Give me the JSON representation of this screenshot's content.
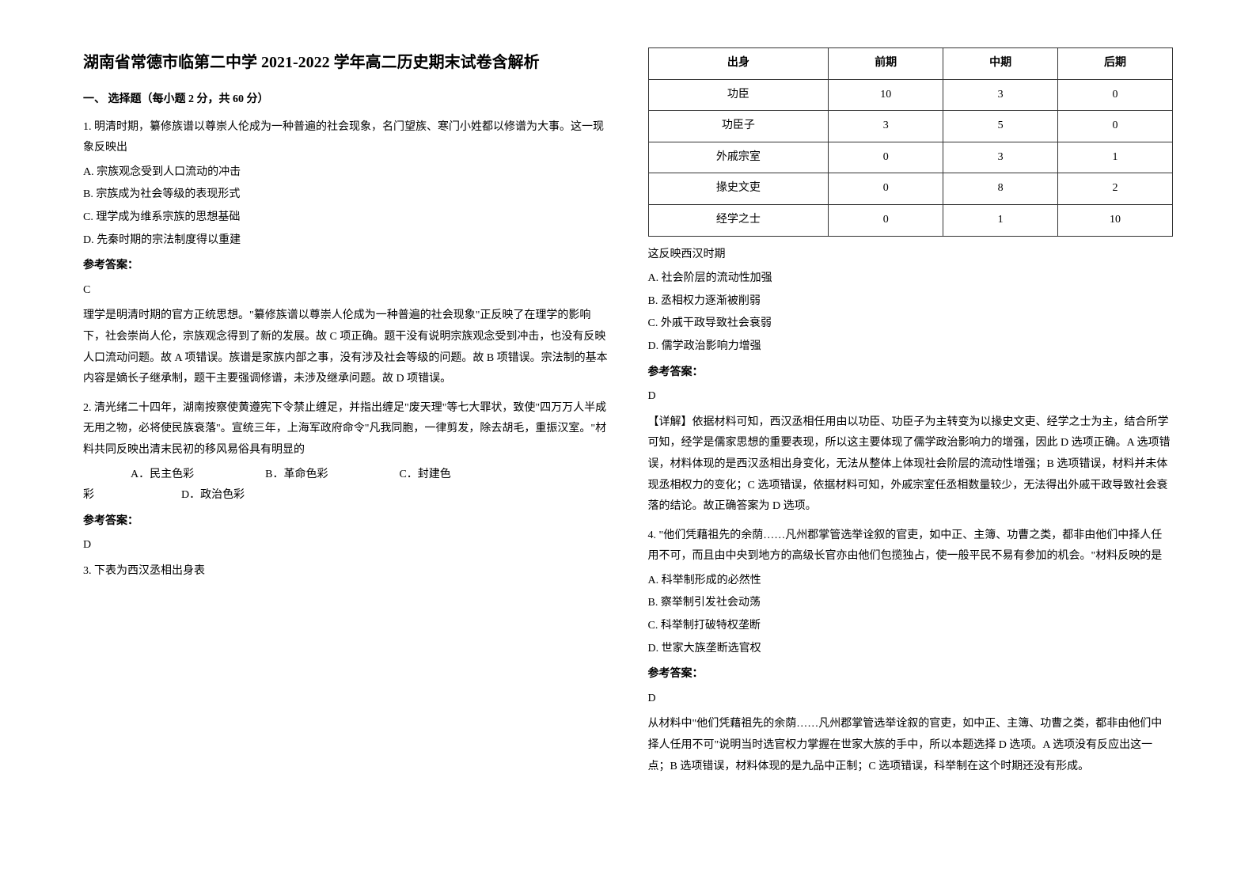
{
  "left": {
    "title": "湖南省常德市临第二中学 2021-2022 学年高二历史期末试卷含解析",
    "section": "一、 选择题（每小题 2 分，共 60 分）",
    "q1": {
      "text": "1. 明清时期，纂修族谱以尊崇人伦成为一种普遍的社会现象，名门望族、寒门小姓都以修谱为大事。这一现象反映出",
      "optA": "A. 宗族观念受到人口流动的冲击",
      "optB": "B. 宗族成为社会等级的表现形式",
      "optC": "C. 理学成为维系宗族的思想基础",
      "optD": "D. 先秦时期的宗法制度得以重建",
      "answerLabel": "参考答案：",
      "answer": "C",
      "explanation": "理学是明清时期的官方正统思想。\"纂修族谱以尊崇人伦成为一种普遍的社会现象\"正反映了在理学的影响下，社会崇尚人伦，宗族观念得到了新的发展。故 C 项正确。题干没有说明宗族观念受到冲击，也没有反映人口流动问题。故 A 项错误。族谱是家族内部之事，没有涉及社会等级的问题。故 B 项错误。宗法制的基本内容是嫡长子继承制，题干主要强调修谱，未涉及继承问题。故 D 项错误。"
    },
    "q2": {
      "text": "2. 清光绪二十四年，湖南按察使黄遵宪下令禁止缠足，并指出缠足\"废天理\"等七大罪状，致使\"四万万人半成无用之物，必将使民族衰落\"。宣统三年，上海军政府命令\"凡我同胞，一律剪发，除去胡毛，重振汉室。\"材料共同反映出清末民初的移风易俗具有明显的",
      "optA": "A．民主色彩",
      "optB": "B．革命色彩",
      "optC": "C．封建色",
      "cai": "彩",
      "optD": "D．政治色彩",
      "answerLabel": "参考答案：",
      "answer": "D"
    },
    "q3": {
      "text": "3. 下表为西汉丞相出身表"
    }
  },
  "right": {
    "table": {
      "headers": [
        "出身",
        "前期",
        "中期",
        "后期"
      ],
      "rows": [
        [
          "功臣",
          "10",
          "3",
          "0"
        ],
        [
          "功臣子",
          "3",
          "5",
          "0"
        ],
        [
          "外戚宗室",
          "0",
          "3",
          "1"
        ],
        [
          "掾史文吏",
          "0",
          "8",
          "2"
        ],
        [
          "经学之士",
          "0",
          "1",
          "10"
        ]
      ]
    },
    "q3cont": {
      "text": "这反映西汉时期",
      "optA": "A. 社会阶层的流动性加强",
      "optB": "B. 丞相权力逐渐被削弱",
      "optC": "C. 外戚干政导致社会衰弱",
      "optD": "D. 儒学政治影响力增强",
      "answerLabel": "参考答案：",
      "answer": "D",
      "explanation": "【详解】依据材料可知，西汉丞相任用由以功臣、功臣子为主转变为以掾史文吏、经学之士为主，结合所学可知，经学是儒家思想的重要表现，所以这主要体现了儒学政治影响力的增强，因此 D 选项正确。A 选项错误，材料体现的是西汉丞相出身变化，无法从整体上体现社会阶层的流动性增强；B 选项错误，材料并未体现丞相权力的变化；C 选项错误，依据材料可知，外戚宗室任丞相数量较少，无法得出外戚干政导致社会衰落的结论。故正确答案为 D 选项。"
    },
    "q4": {
      "text": "4. \"他们凭藉祖先的余荫……凡州郡掌管选举诠叙的官吏，如中正、主簿、功曹之类，都非由他们中择人任用不可，而且由中央到地方的高级长官亦由他们包揽独占，使一般平民不易有参加的机会。\"材料反映的是",
      "optA": "A. 科举制形成的必然性",
      "optB": "B. 察举制引发社会动荡",
      "optC": "C. 科举制打破特权垄断",
      "optD": "D. 世家大族垄断选官权",
      "answerLabel": "参考答案：",
      "answer": "D",
      "explanation": "从材料中\"他们凭藉祖先的余荫……凡州郡掌管选举诠叙的官吏，如中正、主簿、功曹之类，都非由他们中择人任用不可\"说明当时选官权力掌握在世家大族的手中，所以本题选择 D 选项。A 选项没有反应出这一点；B 选项错误，材料体现的是九品中正制；C 选项错误，科举制在这个时期还没有形成。"
    }
  }
}
